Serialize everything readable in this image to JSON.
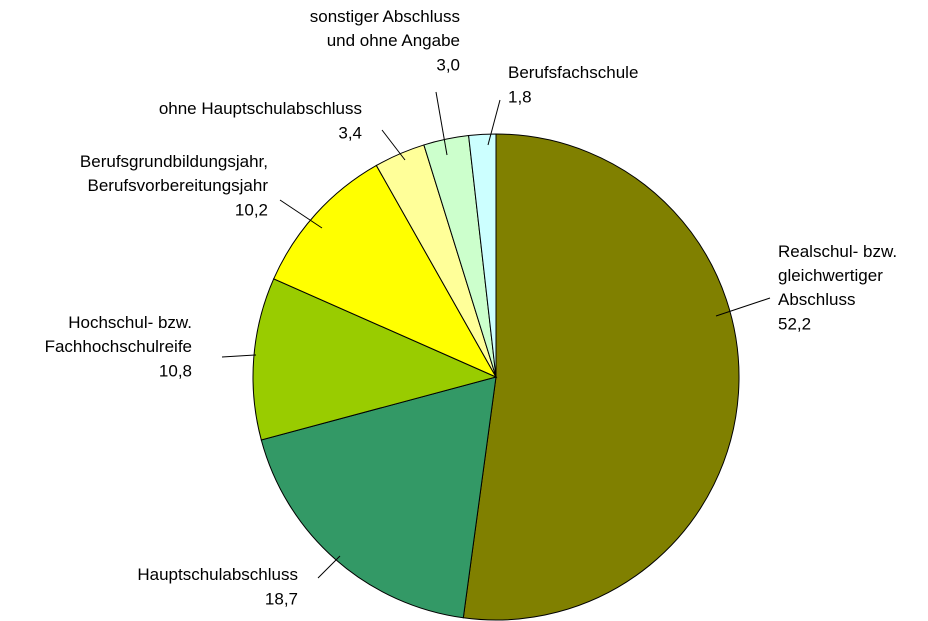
{
  "chart_data": {
    "type": "pie",
    "categories": [
      "Realschul- bzw.\ngleichwertiger\nAbschluss",
      "Hauptschulabschluss",
      "Hochschul- bzw.\nFachhochschulreife",
      "Berufsgrundbildungsjahr,\nBerufsvorbereitungsjahr",
      "ohne Hauptschulabschluss",
      "sonstiger Abschluss\nund ohne Angabe",
      "Berufsfachschule"
    ],
    "values": [
      52.2,
      18.7,
      10.8,
      10.2,
      3.4,
      3.0,
      1.8
    ],
    "value_labels": [
      "52,2",
      "18,7",
      "10,8",
      "10,2",
      "3,4",
      "3,0",
      "1,8"
    ],
    "colors": [
      "#808000",
      "#339966",
      "#99cc00",
      "#ffff00",
      "#ffff99",
      "#ccffcc",
      "#ccffff"
    ]
  }
}
